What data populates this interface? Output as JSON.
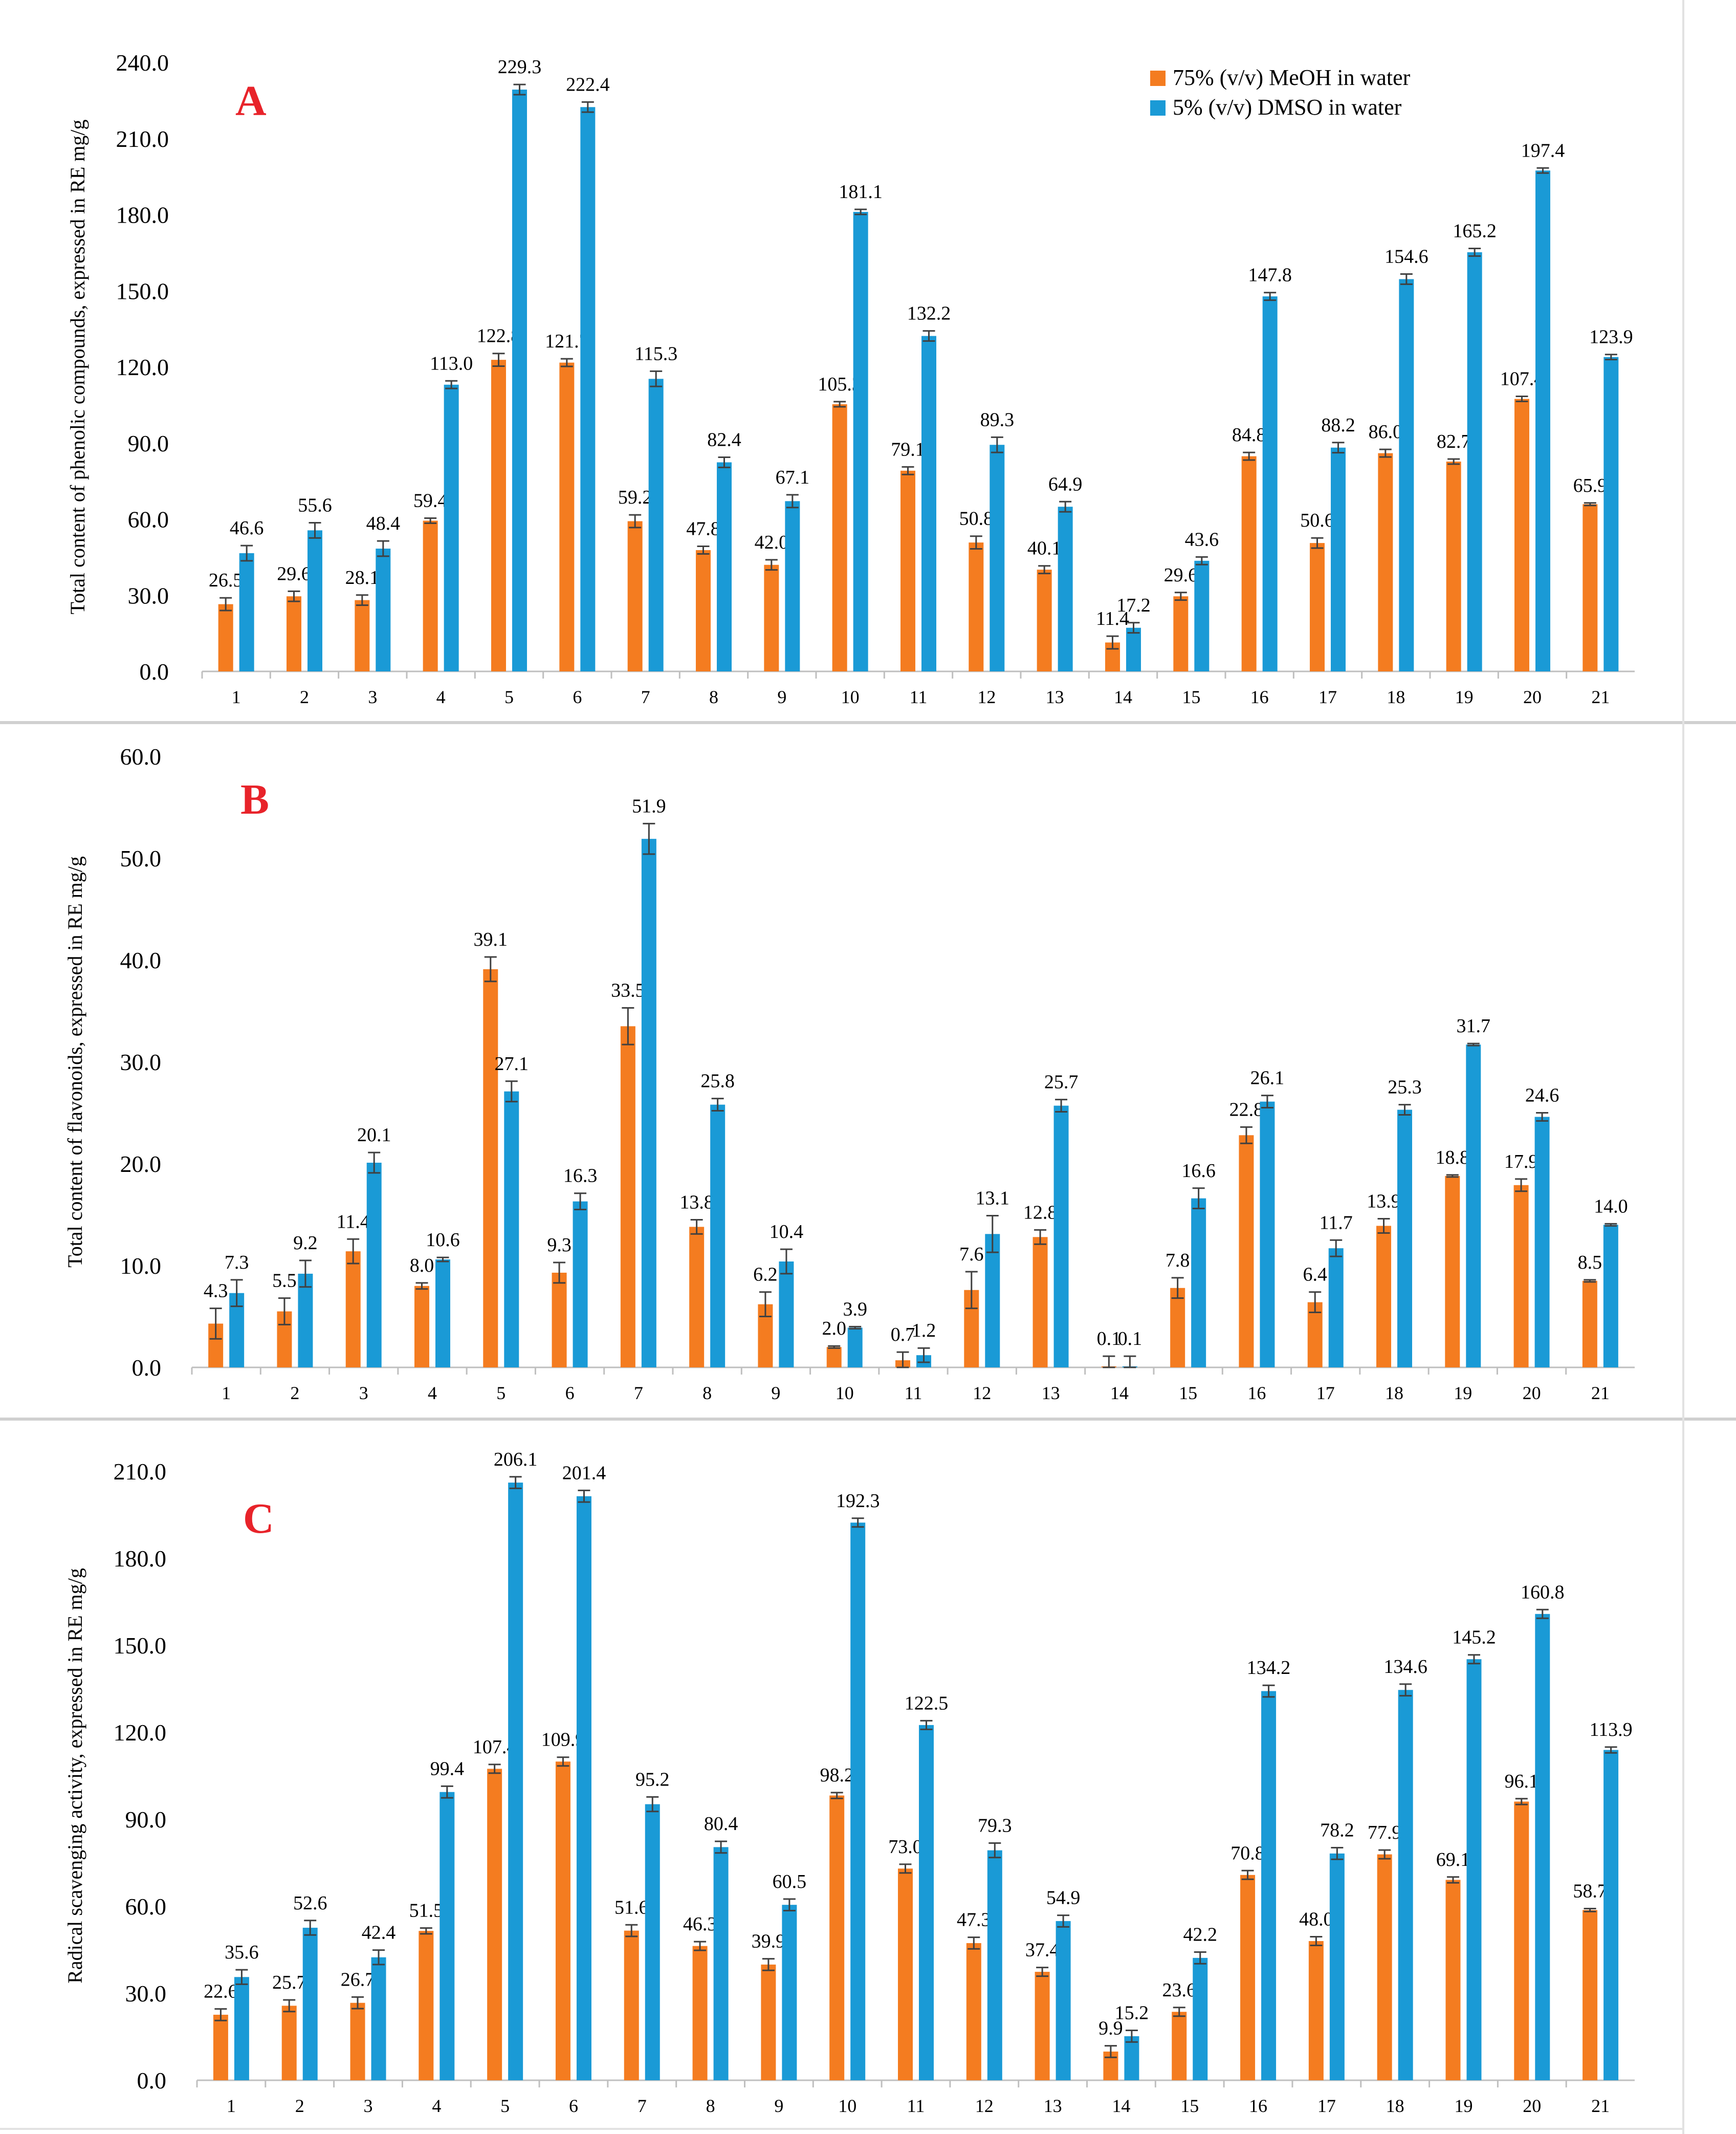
{
  "legend": {
    "items": [
      {
        "label": "75% (v/v) MeOH in water",
        "color": "#F47C20"
      },
      {
        "label": "5% (v/v) DMSO in water",
        "color": "#1A9AD6"
      }
    ]
  },
  "colors": {
    "meoh": "#F47C20",
    "dmso": "#1A9AD6",
    "axis": "#BFBFBF",
    "error_bar": "#404040",
    "panel_letter": "#E8232A"
  },
  "chart_data": [
    {
      "type": "bar",
      "panel": "A",
      "ylabel": "Total content of phenolic compounds, expressed in RE mg/g",
      "ylim": [
        0,
        240
      ],
      "yticks": [
        "0.0",
        "30.0",
        "60.0",
        "90.0",
        "120.0",
        "150.0",
        "180.0",
        "210.0",
        "240.0"
      ],
      "categories": [
        "1",
        "2",
        "3",
        "4",
        "5",
        "6",
        "7",
        "8",
        "9",
        "10",
        "11",
        "12",
        "13",
        "14",
        "15",
        "16",
        "17",
        "18",
        "19",
        "20",
        "21"
      ],
      "series": [
        {
          "name": "75% (v/v) MeOH in water",
          "values": [
            26.5,
            29.6,
            28.1,
            59.4,
            122.8,
            121.7,
            59.2,
            47.8,
            42.0,
            105.3,
            79.1,
            50.8,
            40.1,
            11.4,
            29.6,
            84.8,
            50.6,
            86.0,
            82.7,
            107.4,
            65.9
          ],
          "labels": [
            "26.5",
            "29.6",
            "28.1",
            "59.4",
            "122.8",
            "121.7",
            "59.2",
            "47.8",
            "42.0",
            "105.3",
            "79.1",
            "50.8",
            "40.1",
            "11.4",
            "29.6",
            "84.8",
            "50.6",
            "86.0",
            "82.7",
            "107.4",
            "65.9"
          ],
          "errors": [
            2.5,
            2.0,
            2.0,
            1.0,
            2.5,
            1.5,
            2.5,
            1.5,
            2.0,
            1.0,
            1.5,
            2.5,
            1.5,
            2.5,
            1.5,
            1.5,
            2.0,
            1.5,
            1.0,
            1.0,
            0.5
          ]
        },
        {
          "name": "5% (v/v) DMSO in water",
          "values": [
            46.6,
            55.6,
            48.4,
            113.0,
            229.3,
            222.4,
            115.3,
            82.4,
            67.1,
            181.1,
            132.2,
            89.3,
            64.9,
            17.2,
            43.6,
            147.8,
            88.2,
            154.6,
            165.2,
            197.4,
            123.9
          ],
          "labels": [
            "46.6",
            "55.6",
            "48.4",
            "113.0",
            "229.3",
            "222.4",
            "115.3",
            "82.4",
            "67.1",
            "181.1",
            "132.2",
            "89.3",
            "64.9",
            "17.2",
            "43.6",
            "147.8",
            "88.2",
            "154.6",
            "165.2",
            "197.4",
            "123.9"
          ],
          "errors": [
            3.0,
            3.0,
            3.0,
            1.5,
            2.0,
            2.0,
            3.0,
            2.0,
            2.5,
            1.0,
            2.0,
            3.0,
            2.0,
            2.0,
            1.5,
            1.5,
            2.0,
            2.0,
            1.5,
            1.0,
            1.0
          ]
        }
      ]
    },
    {
      "type": "bar",
      "panel": "B",
      "ylabel": "Total content of flavonoids, expressed in RE mg/g",
      "ylim": [
        0,
        60
      ],
      "yticks": [
        "0.0",
        "10.0",
        "20.0",
        "30.0",
        "40.0",
        "50.0",
        "60.0"
      ],
      "categories": [
        "1",
        "2",
        "3",
        "4",
        "5",
        "6",
        "7",
        "8",
        "9",
        "10",
        "11",
        "12",
        "13",
        "14",
        "15",
        "16",
        "17",
        "18",
        "19",
        "20",
        "21"
      ],
      "series": [
        {
          "name": "75% (v/v) MeOH in water",
          "values": [
            4.3,
            5.5,
            11.4,
            8.0,
            39.1,
            9.3,
            33.5,
            13.8,
            6.2,
            2.0,
            0.7,
            7.6,
            12.8,
            0.1,
            7.8,
            22.8,
            6.4,
            13.9,
            18.8,
            17.9,
            8.5
          ],
          "labels": [
            "4.3",
            "5.5",
            "11.4",
            "8.0",
            "39.1",
            "9.3",
            "33.5",
            "13.8",
            "6.2",
            "2.0",
            "0.7",
            "7.6",
            "12.8",
            "0.1",
            "7.8",
            "22.8",
            "6.4",
            "13.9",
            "18.8",
            "17.9",
            "8.5"
          ],
          "errors": [
            1.5,
            1.3,
            1.2,
            0.3,
            1.2,
            1.0,
            1.8,
            0.7,
            1.2,
            0.1,
            0.8,
            1.8,
            0.7,
            1.0,
            1.0,
            0.8,
            1.0,
            0.7,
            0.1,
            0.6,
            0.1
          ]
        },
        {
          "name": "5% (v/v) DMSO in water",
          "values": [
            7.3,
            9.2,
            20.1,
            10.6,
            27.1,
            16.3,
            51.9,
            25.8,
            10.4,
            3.9,
            1.2,
            13.1,
            25.7,
            0.1,
            16.6,
            26.1,
            11.7,
            25.3,
            31.7,
            24.6,
            14.0
          ],
          "labels": [
            "7.3",
            "9.2",
            "20.1",
            "10.6",
            "27.1",
            "16.3",
            "51.9",
            "25.8",
            "10.4",
            "3.9",
            "1.2",
            "13.1",
            "25.7",
            "0.1",
            "16.6",
            "26.1",
            "11.7",
            "25.3",
            "31.7",
            "24.6",
            "14.0"
          ],
          "errors": [
            1.3,
            1.3,
            1.0,
            0.2,
            1.0,
            0.8,
            1.5,
            0.6,
            1.2,
            0.1,
            0.7,
            1.8,
            0.6,
            1.0,
            1.0,
            0.6,
            0.8,
            0.5,
            0.1,
            0.4,
            0.1
          ]
        }
      ]
    },
    {
      "type": "bar",
      "panel": "C",
      "ylabel": "Radical scavenging activity, expressed in RE mg/g",
      "ylim": [
        0,
        210
      ],
      "yticks": [
        "0.0",
        "30.0",
        "60.0",
        "90.0",
        "120.0",
        "150.0",
        "180.0",
        "210.0"
      ],
      "categories": [
        "1",
        "2",
        "3",
        "4",
        "5",
        "6",
        "7",
        "8",
        "9",
        "10",
        "11",
        "12",
        "13",
        "14",
        "15",
        "16",
        "17",
        "18",
        "19",
        "20",
        "21"
      ],
      "series": [
        {
          "name": "75% (v/v) MeOH in water",
          "values": [
            22.6,
            25.7,
            26.7,
            51.5,
            107.4,
            109.9,
            51.6,
            46.3,
            39.9,
            98.2,
            73.0,
            47.3,
            37.4,
            9.9,
            23.6,
            70.8,
            48.0,
            77.9,
            69.1,
            96.1,
            58.7
          ],
          "labels": [
            "22.6",
            "25.7",
            "26.7",
            "51.5",
            "107.4",
            "109.9",
            "51.6",
            "46.3",
            "39.9",
            "98.2",
            "73.0",
            "47.3",
            "37.4",
            "9.9",
            "23.6",
            "70.8",
            "48.0",
            "77.9",
            "69.1",
            "96.1",
            "58.7"
          ],
          "errors": [
            2.0,
            2.0,
            2.0,
            1.0,
            1.5,
            1.5,
            2.0,
            1.5,
            2.0,
            1.0,
            1.5,
            2.0,
            1.5,
            2.0,
            1.5,
            1.5,
            1.5,
            1.5,
            1.0,
            1.0,
            0.5
          ]
        },
        {
          "name": "5% (v/v) DMSO in water",
          "values": [
            35.6,
            52.6,
            42.4,
            99.4,
            206.1,
            201.4,
            95.2,
            80.4,
            60.5,
            192.3,
            122.5,
            79.3,
            54.9,
            15.2,
            42.2,
            134.2,
            78.2,
            134.6,
            145.2,
            160.8,
            113.9
          ],
          "labels": [
            "35.6",
            "52.6",
            "42.4",
            "99.4",
            "206.1",
            "201.4",
            "95.2",
            "80.4",
            "60.5",
            "192.3",
            "122.5",
            "79.3",
            "54.9",
            "15.2",
            "42.2",
            "134.2",
            "78.2",
            "134.6",
            "145.2",
            "160.8",
            "113.9"
          ],
          "errors": [
            2.5,
            2.5,
            2.5,
            2.0,
            2.0,
            2.0,
            2.5,
            2.0,
            2.0,
            1.5,
            1.5,
            2.5,
            2.0,
            2.0,
            2.0,
            2.0,
            2.0,
            2.0,
            1.5,
            1.5,
            1.0
          ]
        }
      ]
    }
  ]
}
